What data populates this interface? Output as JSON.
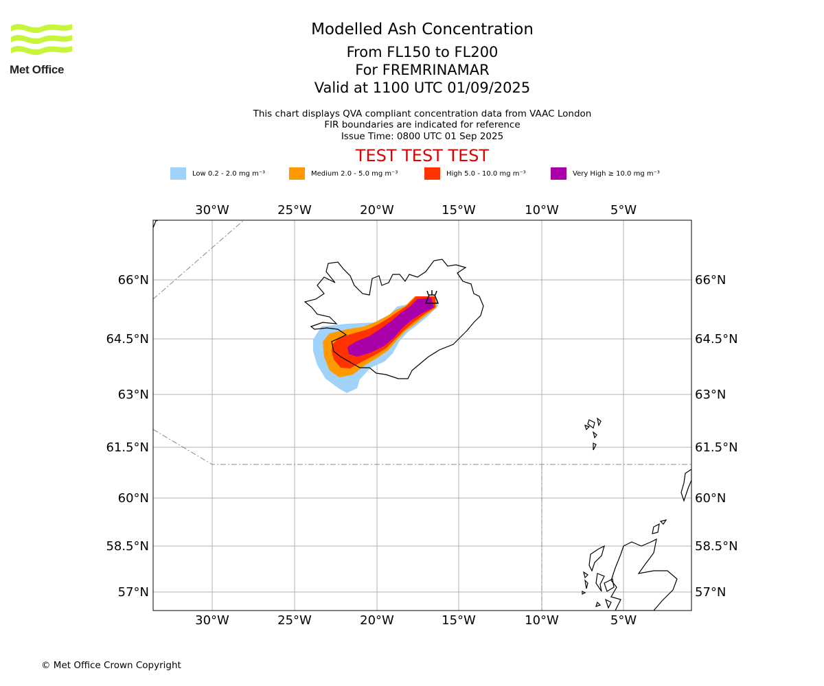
{
  "logo": {
    "text": "Met Office",
    "color": "#c8f53a"
  },
  "header": {
    "title": "Modelled Ash Concentration",
    "level_range": "From FL150 to FL200",
    "volcano": "For FREMRINAMAR",
    "valid_time": "Valid at 1100 UTC 01/09/2025",
    "subtitle_line1": "This chart displays QVA compliant concentration data from VAAC London",
    "subtitle_line2": "FIR boundaries are indicated for reference",
    "issue_time": "Issue Time: 0800 UTC 01 Sep 2025",
    "test_banner": "TEST TEST TEST"
  },
  "legend": [
    {
      "label": "Low 0.2 - 2.0 mg m⁻³",
      "color": "#a0d2fa"
    },
    {
      "label": "Medium 2.0 - 5.0 mg m⁻³",
      "color": "#ff9900"
    },
    {
      "label": "High 5.0 - 10.0 mg m⁻³",
      "color": "#ff3300"
    },
    {
      "label": "Very High ≥ 10.0 mg m⁻³",
      "color": "#aa00aa"
    }
  ],
  "map": {
    "lon_ticks": [
      "30°W",
      "25°W",
      "20°W",
      "15°W",
      "10°W",
      "5°W"
    ],
    "lat_ticks": [
      "66°N",
      "64.5°N",
      "63°N",
      "61.5°N",
      "60°N",
      "58.5°N",
      "57°N"
    ],
    "volcano_marker": "volcano-icon"
  },
  "footer": {
    "copyright": "© Met Office Crown Copyright"
  }
}
